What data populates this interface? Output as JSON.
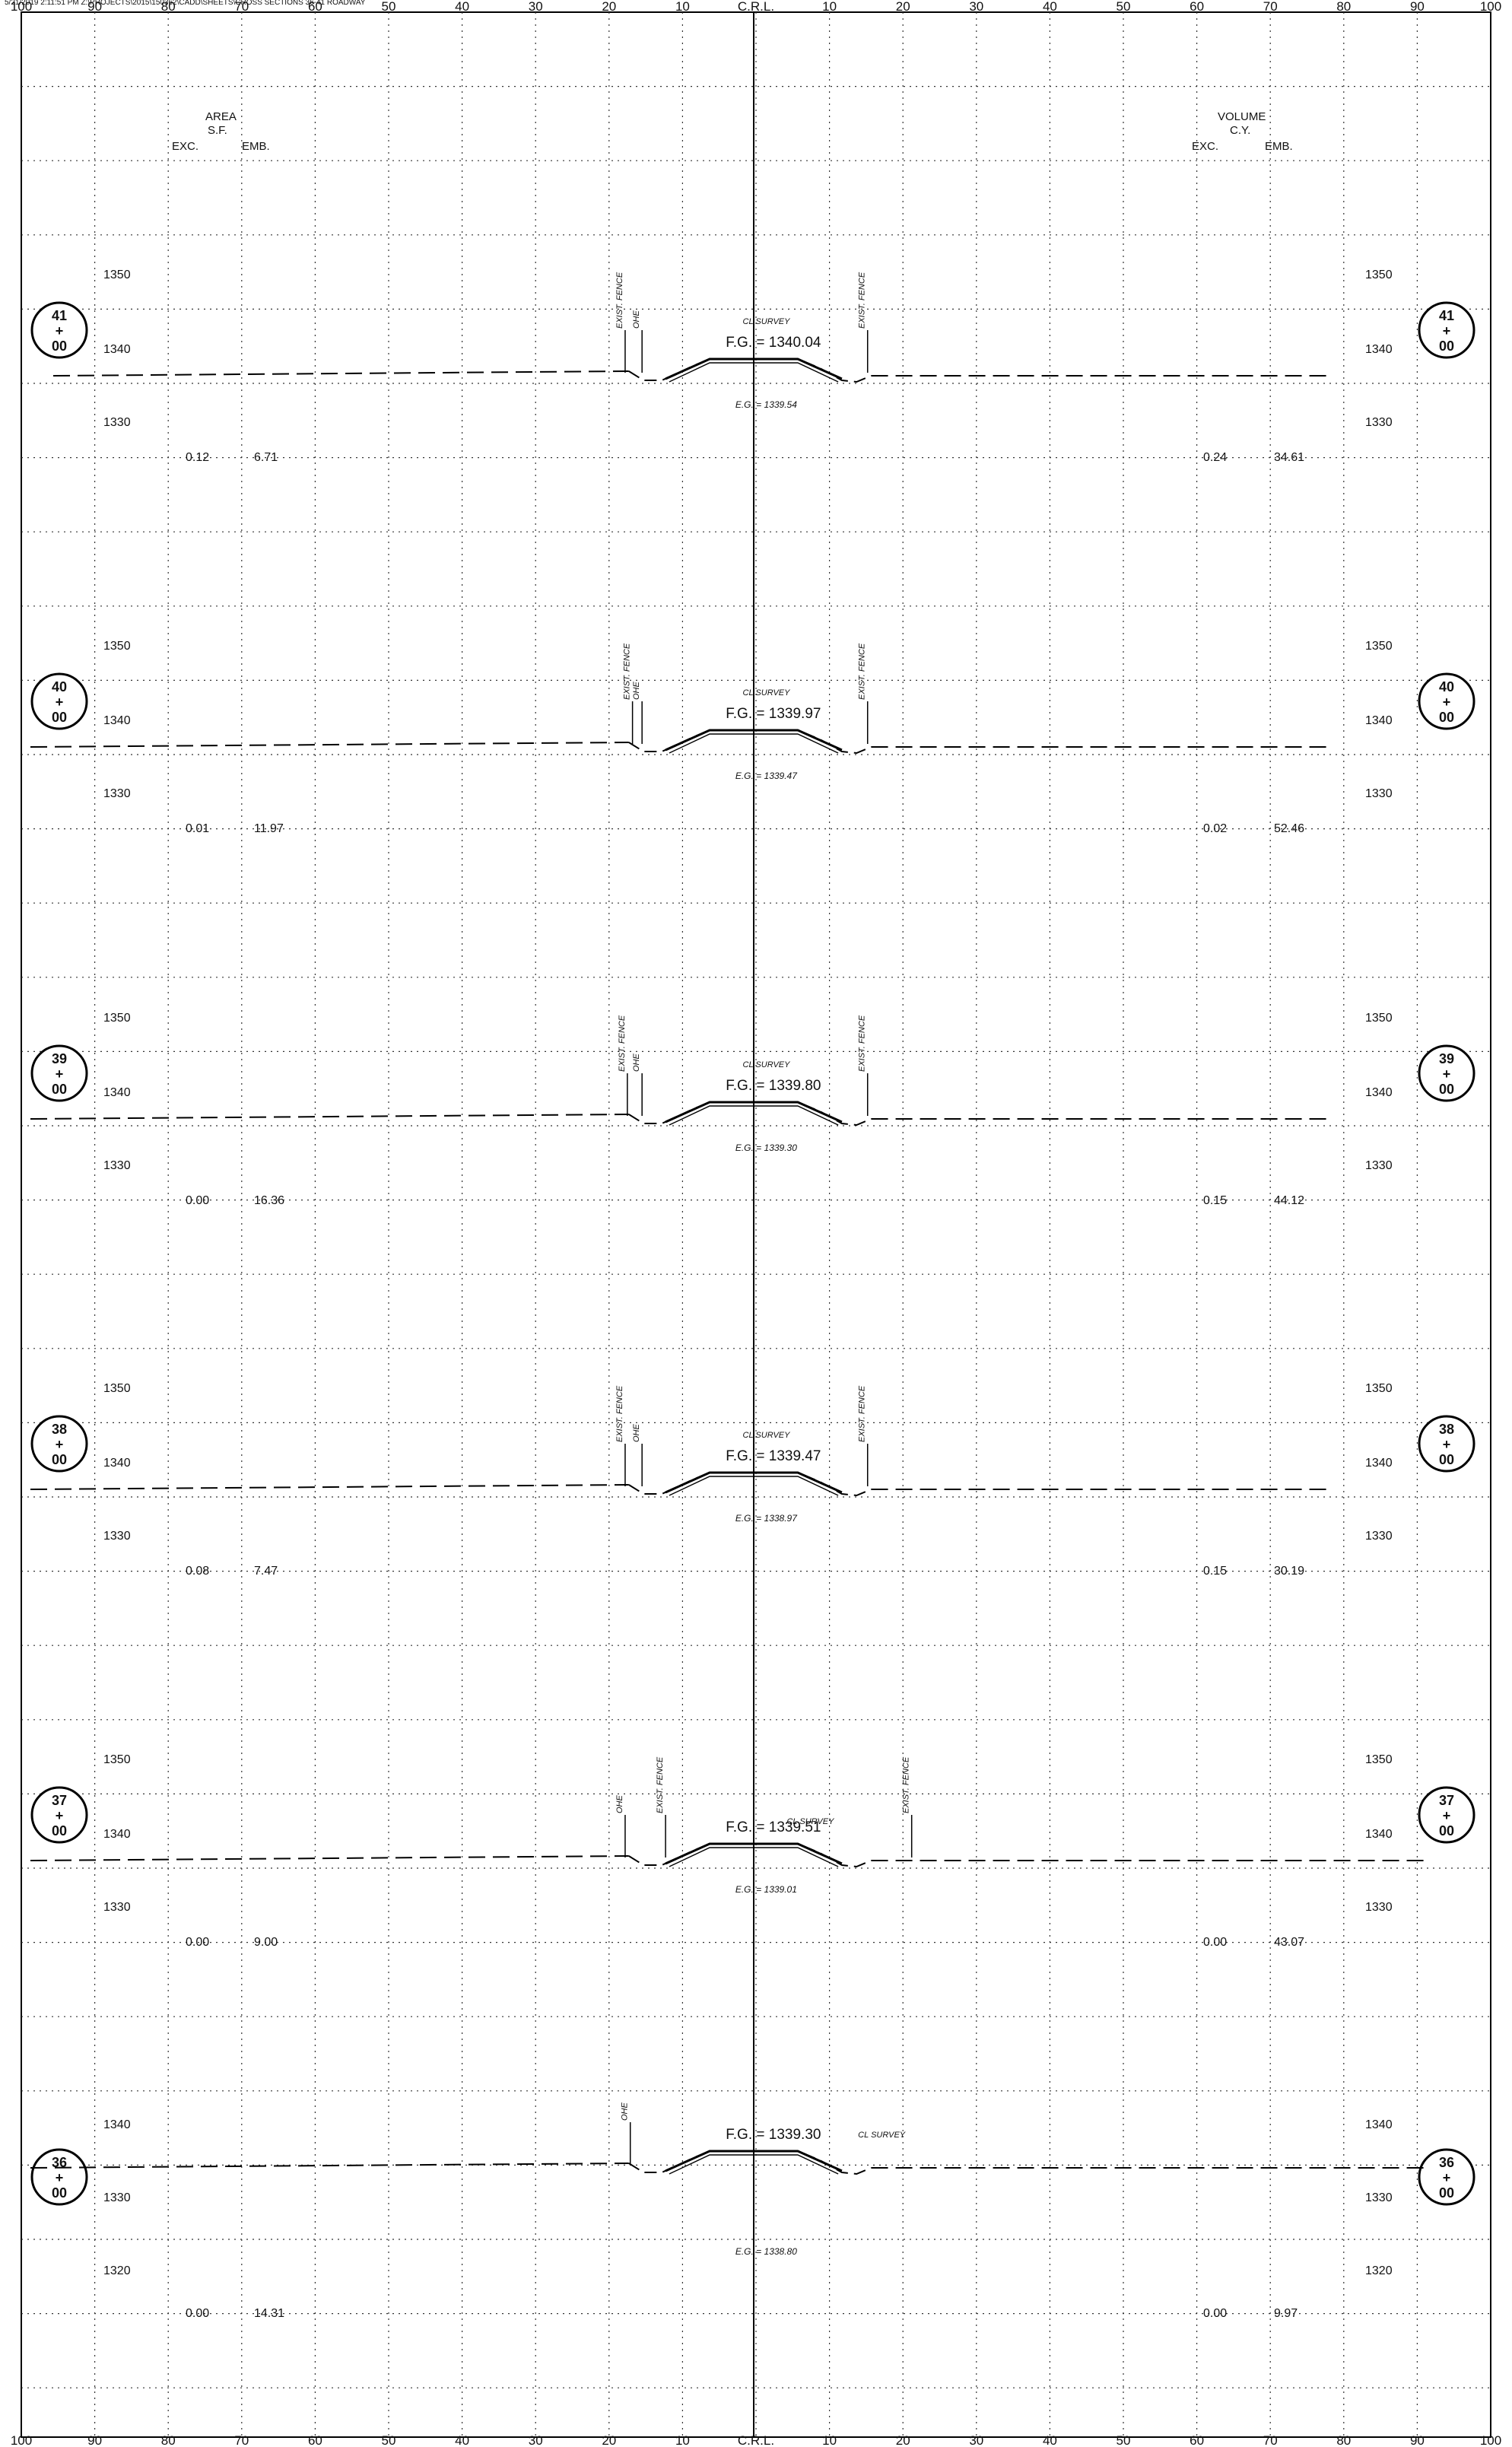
{
  "header_text": "5/21/2019 2:11:51 PM Z:\\PROJECTS\\2015\\150362\\CADD\\SHEETS\\CROSS SECTIONS 36-41 ROADWAY",
  "top_axis": [
    "100",
    "90",
    "80",
    "70",
    "60",
    "50",
    "40",
    "30",
    "20",
    "10",
    "C.R.L.",
    "10",
    "20",
    "30",
    "40",
    "50",
    "60",
    "70",
    "80",
    "90",
    "100"
  ],
  "bottom_axis": [
    "100",
    "90",
    "80",
    "70",
    "60",
    "50",
    "40",
    "30",
    "20",
    "10",
    "C.R.L.",
    "10",
    "20",
    "30",
    "40",
    "50",
    "60",
    "70",
    "80",
    "90",
    "100"
  ],
  "area_heading": {
    "title": "AREA",
    "units": "S.F.",
    "exc": "EXC.",
    "emb": "EMB."
  },
  "volume_heading": {
    "title": "VOLUME",
    "units": "C.Y.",
    "exc": "EXC.",
    "emb": "EMB."
  },
  "labels": {
    "cl_survey": "CL SURVEY",
    "exist_fence": "EXIST. FENCE",
    "ohe": "OHE",
    "fg_prefix": "F.G. = ",
    "eg_prefix": "E.G. = "
  },
  "sections": [
    {
      "station": "41",
      "plus": "+",
      "sub": "00",
      "elev_top": "1350",
      "elev_mid": "1340",
      "elev_bot": "1330",
      "fg": "1340.04",
      "eg": "1339.54",
      "area_exc": "0.12",
      "area_emb": "6.71",
      "vol_exc": "0.24",
      "vol_emb": "34.61"
    },
    {
      "station": "40",
      "plus": "+",
      "sub": "00",
      "elev_top": "1350",
      "elev_mid": "1340",
      "elev_bot": "1330",
      "fg": "1339.97",
      "eg": "1339.47",
      "area_exc": "0.01",
      "area_emb": "11.97",
      "vol_exc": "0.02",
      "vol_emb": "52.46"
    },
    {
      "station": "39",
      "plus": "+",
      "sub": "00",
      "elev_top": "1350",
      "elev_mid": "1340",
      "elev_bot": "1330",
      "fg": "1339.80",
      "eg": "1339.30",
      "area_exc": "0.00",
      "area_emb": "16.36",
      "vol_exc": "0.15",
      "vol_emb": "44.12"
    },
    {
      "station": "38",
      "plus": "+",
      "sub": "00",
      "elev_top": "1350",
      "elev_mid": "1340",
      "elev_bot": "1330",
      "fg": "1339.47",
      "eg": "1338.97",
      "area_exc": "0.08",
      "area_emb": "7.47",
      "vol_exc": "0.15",
      "vol_emb": "30.19"
    },
    {
      "station": "37",
      "plus": "+",
      "sub": "00",
      "elev_top": "1350",
      "elev_mid": "1340",
      "elev_bot": "1330",
      "fg": "1339.51",
      "eg": "1339.01",
      "area_exc": "0.00",
      "area_emb": "9.00",
      "vol_exc": "0.00",
      "vol_emb": "43.07"
    },
    {
      "station": "36",
      "plus": "+",
      "sub": "00",
      "elev_top": "1340",
      "elev_mid": "1330",
      "elev_bot": "1320",
      "fg": "1339.30",
      "eg": "1338.80",
      "area_exc": "0.00",
      "area_emb": "14.31",
      "vol_exc": "0.00",
      "vol_emb": "9.97"
    }
  ]
}
